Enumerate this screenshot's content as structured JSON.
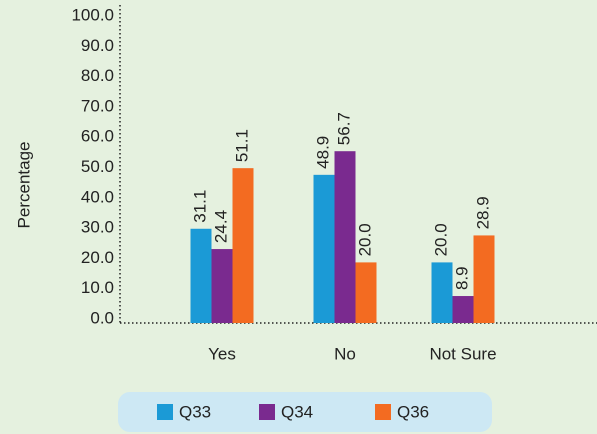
{
  "chart_data": {
    "type": "bar",
    "y_label": "Percentage",
    "categories": [
      "Yes",
      "No",
      "Not Sure"
    ],
    "series": [
      {
        "name": "Q33",
        "color": "#1b9ad6",
        "values": [
          31.1,
          48.9,
          20
        ],
        "value_labels": [
          "31.1",
          "48.9",
          "20.0"
        ]
      },
      {
        "name": "Q34",
        "color": "#7a2a8f",
        "values": [
          24.4,
          56.7,
          8.9
        ],
        "value_labels": [
          "24.4",
          "56.7",
          "8.9"
        ]
      },
      {
        "name": "Q36",
        "color": "#f36b21",
        "values": [
          51.1,
          20,
          28.9
        ],
        "value_labels": [
          "51.1",
          "20.0",
          "28.9"
        ]
      }
    ],
    "ylim": [
      0,
      100
    ],
    "yticks": [
      {
        "value": 0,
        "label": "0.0"
      },
      {
        "value": 10,
        "label": "10.0"
      },
      {
        "value": 20,
        "label": "20.0"
      },
      {
        "value": 30,
        "label": "30.0"
      },
      {
        "value": 40,
        "label": "40.0"
      },
      {
        "value": 50,
        "label": "50.0"
      },
      {
        "value": 60,
        "label": "60.0"
      },
      {
        "value": 70,
        "label": "70.0"
      },
      {
        "value": 80,
        "label": "80.0"
      },
      {
        "value": 90,
        "label": "90.0"
      },
      {
        "value": 100,
        "label": "100.0"
      }
    ],
    "legend": "bottom"
  }
}
